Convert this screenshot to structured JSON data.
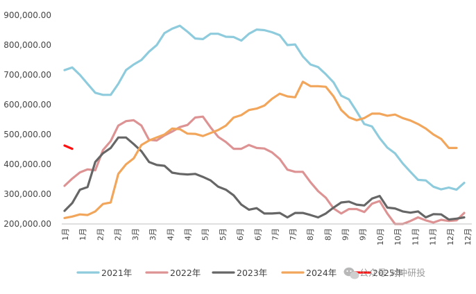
{
  "watermark": {
    "text": "公众号·对冲研投",
    "icon": "wechat-icon"
  },
  "chart_data": {
    "type": "line",
    "title": "",
    "xlabel": "",
    "ylabel": "",
    "ylim": [
      200000,
      900000
    ],
    "y_ticks": [
      200000,
      300000,
      400000,
      500000,
      600000,
      700000,
      800000,
      900000
    ],
    "y_tick_labels": [
      "200,000.00",
      "300,000.00",
      "400,000.00",
      "500,000.00",
      "600,000.00",
      "700,000.00",
      "800,000.00",
      "900,000.00"
    ],
    "x_tick_labels": [
      "1月",
      "1月",
      "2月",
      "2月",
      "3月",
      "3月",
      "4月",
      "4月",
      "5月",
      "5月",
      "6月",
      "6月",
      "7月",
      "7月",
      "8月",
      "8月",
      "9月",
      "9月",
      "10月",
      "10月",
      "11月",
      "11月",
      "12月",
      "12月"
    ],
    "points_per_series": 53,
    "grid": false,
    "legend": "bottom",
    "series": [
      {
        "name": "2021年",
        "color": "#8ecbdc",
        "values": [
          716000,
          725000,
          700000,
          670000,
          640000,
          633000,
          633000,
          670000,
          716000,
          735000,
          750000,
          778000,
          800000,
          840000,
          855000,
          865000,
          845000,
          822000,
          820000,
          838000,
          838000,
          828000,
          827000,
          815000,
          838000,
          852000,
          850000,
          843000,
          833000,
          800000,
          802000,
          762000,
          735000,
          726000,
          702000,
          675000,
          630000,
          618000,
          578000,
          535000,
          527000,
          488000,
          456000,
          437000,
          403000,
          375000,
          348000,
          346000,
          325000,
          316000,
          322000,
          315000,
          338000
        ]
      },
      {
        "name": "2022年",
        "color": "#dd9393",
        "values": [
          328000,
          352000,
          373000,
          383000,
          380000,
          448000,
          478000,
          530000,
          545000,
          548000,
          530000,
          482000,
          480000,
          497000,
          510000,
          525000,
          532000,
          557000,
          560000,
          524000,
          492000,
          475000,
          452000,
          452000,
          465000,
          455000,
          453000,
          440000,
          418000,
          382000,
          375000,
          375000,
          340000,
          310000,
          288000,
          252000,
          235000,
          250000,
          250000,
          240000,
          268000,
          277000,
          235000,
          200000,
          200000,
          210000,
          222000,
          212000,
          205000,
          214000,
          210000,
          212000,
          237000
        ]
      },
      {
        "name": "2023年",
        "color": "#666666",
        "values": [
          244000,
          270000,
          315000,
          324000,
          408000,
          437000,
          455000,
          490000,
          490000,
          468000,
          444000,
          408000,
          398000,
          395000,
          372000,
          368000,
          366000,
          368000,
          358000,
          346000,
          325000,
          315000,
          296000,
          265000,
          248000,
          253000,
          235000,
          235000,
          237000,
          222000,
          237000,
          237000,
          230000,
          222000,
          235000,
          255000,
          272000,
          275000,
          265000,
          262000,
          285000,
          294000,
          255000,
          252000,
          242000,
          238000,
          242000,
          222000,
          233000,
          232000,
          215000,
          218000,
          222000
        ]
      },
      {
        "name": "2024年",
        "color": "#f1a65c",
        "values": [
          220000,
          225000,
          232000,
          230000,
          242000,
          267000,
          272000,
          368000,
          400000,
          420000,
          465000,
          480000,
          490000,
          500000,
          520000,
          518000,
          503000,
          502000,
          495000,
          505000,
          515000,
          530000,
          557000,
          565000,
          582000,
          587000,
          597000,
          620000,
          637000,
          628000,
          625000,
          677000,
          662000,
          662000,
          660000,
          628000,
          582000,
          558000,
          548000,
          555000,
          570000,
          570000,
          563000,
          567000,
          555000,
          547000,
          535000,
          520000,
          500000,
          485000,
          455000,
          455000,
          null
        ]
      },
      {
        "name": "2025年",
        "color": "#ff1010",
        "values": [
          463000,
          452000,
          null,
          null,
          null,
          null,
          null,
          null,
          null,
          null,
          null,
          null,
          null,
          null,
          null,
          null,
          null,
          null,
          null,
          null,
          null,
          null,
          null,
          null,
          null,
          null,
          null,
          null,
          null,
          null,
          null,
          null,
          null,
          null,
          null,
          null,
          null,
          null,
          null,
          null,
          null,
          null,
          null,
          null,
          null,
          null,
          null,
          null,
          null,
          null,
          null,
          null,
          null
        ]
      }
    ]
  }
}
